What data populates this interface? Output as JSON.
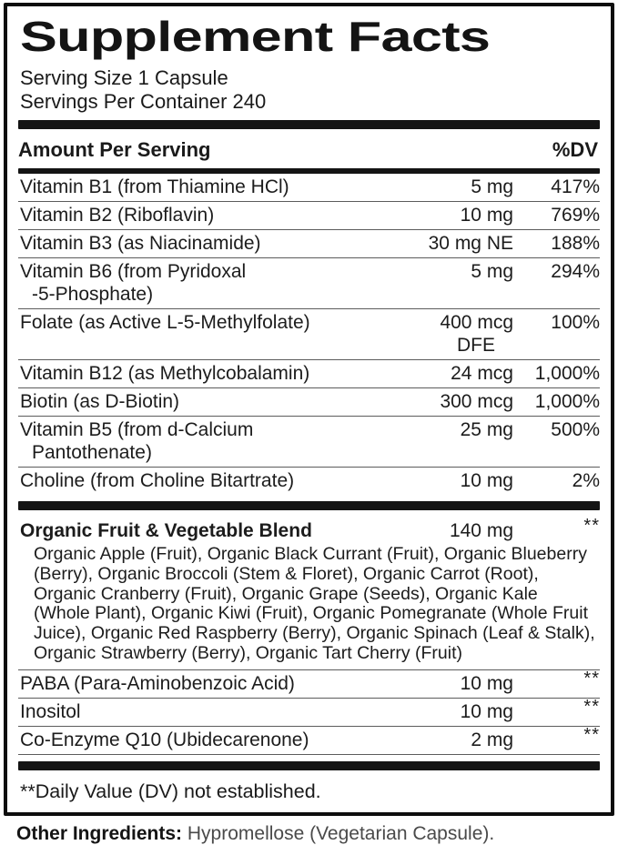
{
  "panel": {
    "title": "Supplement Facts",
    "serving_size": "Serving Size 1 Capsule",
    "servings_per_container": "Servings Per Container 240",
    "amount_header": "Amount Per Serving",
    "dv_header": "%DV",
    "footnote": "**Daily Value (DV) not established."
  },
  "colors": {
    "ink": "#141414",
    "rule": "#5c5c5c",
    "background": "#ffffff"
  },
  "sections": {
    "main": {
      "rows": [
        {
          "name": [
            "Vitamin B1 (from Thiamine HCl)"
          ],
          "amount": [
            "5 mg"
          ],
          "dv": "417%"
        },
        {
          "name": [
            "Vitamin B2 (Riboflavin)"
          ],
          "amount": [
            "10 mg"
          ],
          "dv": "769%"
        },
        {
          "name": [
            "Vitamin B3 (as Niacinamide)"
          ],
          "amount": [
            "30 mg NE"
          ],
          "dv": "188%"
        },
        {
          "name": [
            "Vitamin B6 (from Pyridoxal",
            "-5-Phosphate)"
          ],
          "amount": [
            "5 mg"
          ],
          "dv": "294%"
        },
        {
          "name": [
            "Folate (as Active L-5-Methylfolate)"
          ],
          "amount": [
            "400 mcg",
            "DFE"
          ],
          "dv": "100%"
        },
        {
          "name": [
            "Vitamin B12 (as Methylcobalamin)"
          ],
          "amount": [
            "24 mcg"
          ],
          "dv": "1,000%"
        },
        {
          "name": [
            "Biotin (as D-Biotin)"
          ],
          "amount": [
            "300 mcg"
          ],
          "dv": "1,000%"
        },
        {
          "name": [
            "Vitamin B5 (from d-Calcium",
            "Pantothenate)"
          ],
          "amount": [
            "25 mg"
          ],
          "dv": "500%"
        },
        {
          "name": [
            "Choline (from Choline Bitartrate)"
          ],
          "amount": [
            "10 mg"
          ],
          "dv": "2%"
        }
      ]
    },
    "blend": {
      "rows": [
        {
          "name": [
            "Organic Fruit & Vegetable Blend"
          ],
          "amount": [
            "140 mg"
          ],
          "dv": "**",
          "desc": "Organic Apple (Fruit), Organic Black Currant (Fruit), Organic Blueberry (Berry), Organic Broccoli (Stem & Floret), Organic Carrot (Root), Organic Cranberry (Fruit), Organic Grape (Seeds), Organic Kale (Whole Plant), Organic Kiwi (Fruit), Organic Pomegranate (Whole Fruit Juice), Organic Red Raspberry (Berry), Organic Spinach (Leaf & Stalk), Organic Strawberry (Berry), Organic Tart Cherry (Fruit)"
        },
        {
          "name": [
            "PABA (Para-Aminobenzoic Acid)"
          ],
          "amount": [
            "10 mg"
          ],
          "dv": "**"
        },
        {
          "name": [
            "Inositol"
          ],
          "amount": [
            "10 mg"
          ],
          "dv": "**"
        },
        {
          "name": [
            "Co-Enzyme Q10 (Ubidecarenone)"
          ],
          "amount": [
            "2 mg"
          ],
          "dv": "**"
        }
      ]
    }
  },
  "other_ingredients": {
    "label": "Other Ingredients:",
    "value": "Hypromellose (Vegetarian Capsule)."
  }
}
